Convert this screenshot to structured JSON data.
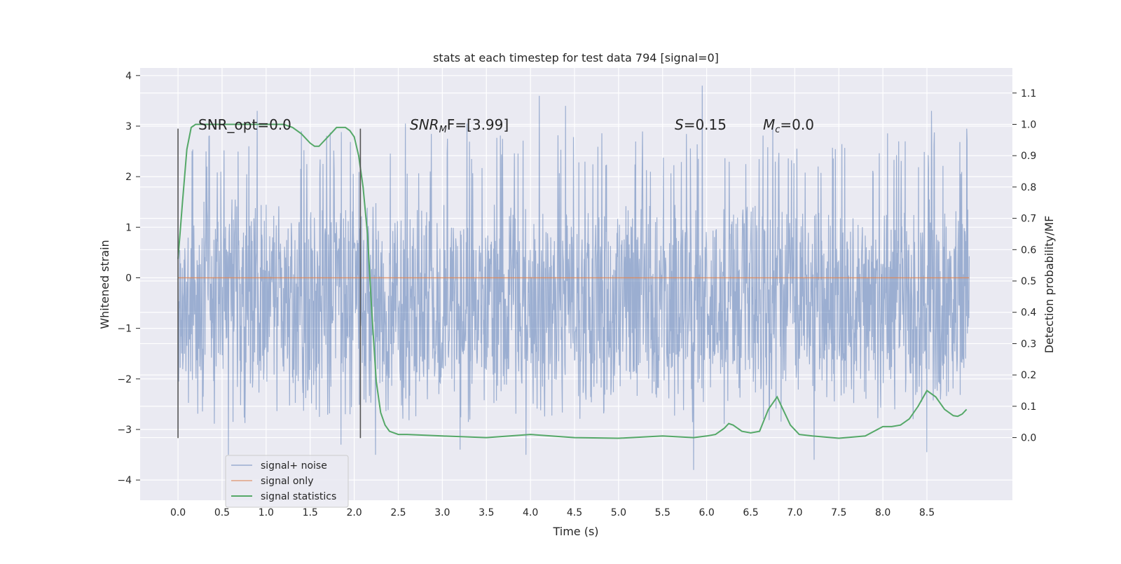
{
  "chart_data": {
    "type": "line",
    "title": "stats at each timestep for test data 794 [signal=0]",
    "xlabel": "Time (s)",
    "ylabel_left": "Whitened strain",
    "ylabel_right": "Detection probability/MF",
    "xlim": [
      -0.43,
      9.47
    ],
    "ylim_left": [
      -4.4,
      4.15
    ],
    "ylim_right": [
      -0.2,
      1.18
    ],
    "x_ticks": [
      "0.0",
      "0.5",
      "1.0",
      "1.5",
      "2.0",
      "2.5",
      "3.0",
      "3.5",
      "4.0",
      "4.5",
      "5.0",
      "5.5",
      "6.0",
      "6.5",
      "7.0",
      "7.5",
      "8.0",
      "8.5"
    ],
    "y_ticks_left": [
      "4",
      "3",
      "2",
      "1",
      "0",
      "−1",
      "−2",
      "−3",
      "−4"
    ],
    "y_ticks_right": [
      "1.1",
      "1.0",
      "0.9",
      "0.8",
      "0.7",
      "0.6",
      "0.5",
      "0.4",
      "0.3",
      "0.2",
      "0.1",
      "0.0"
    ],
    "grid": true,
    "legend_position": "lower-left",
    "colors": {
      "signal_noise": "#4c72b0",
      "signal_only": "#dd8452",
      "signal_statistics": "#55a868",
      "plot_background": "#eaeaf2",
      "grid": "#ffffff",
      "marker_lines": "#555555"
    },
    "annotations": {
      "snr_opt": "SNR_opt=0.0",
      "snr_mf_prefix": "SNR",
      "snr_mf_sub": "M",
      "snr_mf_rest": "F=[3.99]",
      "s_italic": "S",
      "s_rest": "=0.15",
      "mc_italic": "M",
      "mc_sub": "c",
      "mc_rest": "=0.0"
    },
    "markers_x": [
      0.0,
      2.07
    ],
    "series": [
      {
        "name": "signal+ noise",
        "kind": "noise",
        "x_range": [
          0.0,
          8.98
        ],
        "core_range": [
          -2.0,
          2.0
        ],
        "peaks": [
          {
            "x": 0.32,
            "y": 2.5
          },
          {
            "x": 0.9,
            "y": 3.3
          },
          {
            "x": 1.4,
            "y": 2.9
          },
          {
            "x": 1.85,
            "y": 3.0
          },
          {
            "x": 2.58,
            "y": 3.05
          },
          {
            "x": 3.28,
            "y": 3.05
          },
          {
            "x": 4.1,
            "y": 3.6
          },
          {
            "x": 4.4,
            "y": 3.4
          },
          {
            "x": 5.95,
            "y": 3.8
          },
          {
            "x": 6.75,
            "y": 3.0
          },
          {
            "x": 8.55,
            "y": 3.3
          },
          {
            "x": 8.95,
            "y": 2.95
          },
          {
            "x": 0.57,
            "y": -3.5
          },
          {
            "x": 1.85,
            "y": -3.3
          },
          {
            "x": 2.24,
            "y": -3.5
          },
          {
            "x": 3.2,
            "y": -3.4
          },
          {
            "x": 3.95,
            "y": -3.5
          },
          {
            "x": 5.85,
            "y": -3.8
          },
          {
            "x": 7.22,
            "y": -3.6
          },
          {
            "x": 8.5,
            "y": -3.45
          }
        ]
      },
      {
        "name": "signal only",
        "kind": "flat",
        "x": [
          0.0,
          8.98
        ],
        "y": [
          0.0,
          0.0
        ]
      },
      {
        "name": "signal statistics",
        "kind": "line",
        "axis": "right",
        "x": [
          0.0,
          0.05,
          0.1,
          0.15,
          0.2,
          0.3,
          0.5,
          0.8,
          1.0,
          1.2,
          1.3,
          1.4,
          1.5,
          1.55,
          1.6,
          1.7,
          1.8,
          1.9,
          1.95,
          2.0,
          2.05,
          2.1,
          2.15,
          2.2,
          2.25,
          2.3,
          2.35,
          2.4,
          2.5,
          2.6,
          3.0,
          3.5,
          4.0,
          4.5,
          5.0,
          5.5,
          5.85,
          6.0,
          6.1,
          6.2,
          6.25,
          6.3,
          6.4,
          6.5,
          6.6,
          6.7,
          6.8,
          6.85,
          6.95,
          7.05,
          7.2,
          7.5,
          7.8,
          8.0,
          8.1,
          8.2,
          8.3,
          8.4,
          8.5,
          8.6,
          8.7,
          8.8,
          8.85,
          8.9,
          8.95
        ],
        "y": [
          0.57,
          0.75,
          0.92,
          0.99,
          1.0,
          1.0,
          1.0,
          1.0,
          1.0,
          1.0,
          0.99,
          0.97,
          0.94,
          0.93,
          0.93,
          0.96,
          0.99,
          0.99,
          0.98,
          0.96,
          0.9,
          0.8,
          0.65,
          0.4,
          0.18,
          0.08,
          0.04,
          0.02,
          0.01,
          0.01,
          0.005,
          0.0,
          0.01,
          0.0,
          -0.002,
          0.005,
          0.0,
          0.005,
          0.01,
          0.03,
          0.045,
          0.04,
          0.02,
          0.015,
          0.02,
          0.09,
          0.13,
          0.1,
          0.04,
          0.01,
          0.005,
          -0.002,
          0.005,
          0.035,
          0.035,
          0.04,
          0.06,
          0.1,
          0.15,
          0.13,
          0.09,
          0.07,
          0.068,
          0.075,
          0.09
        ]
      }
    ]
  }
}
